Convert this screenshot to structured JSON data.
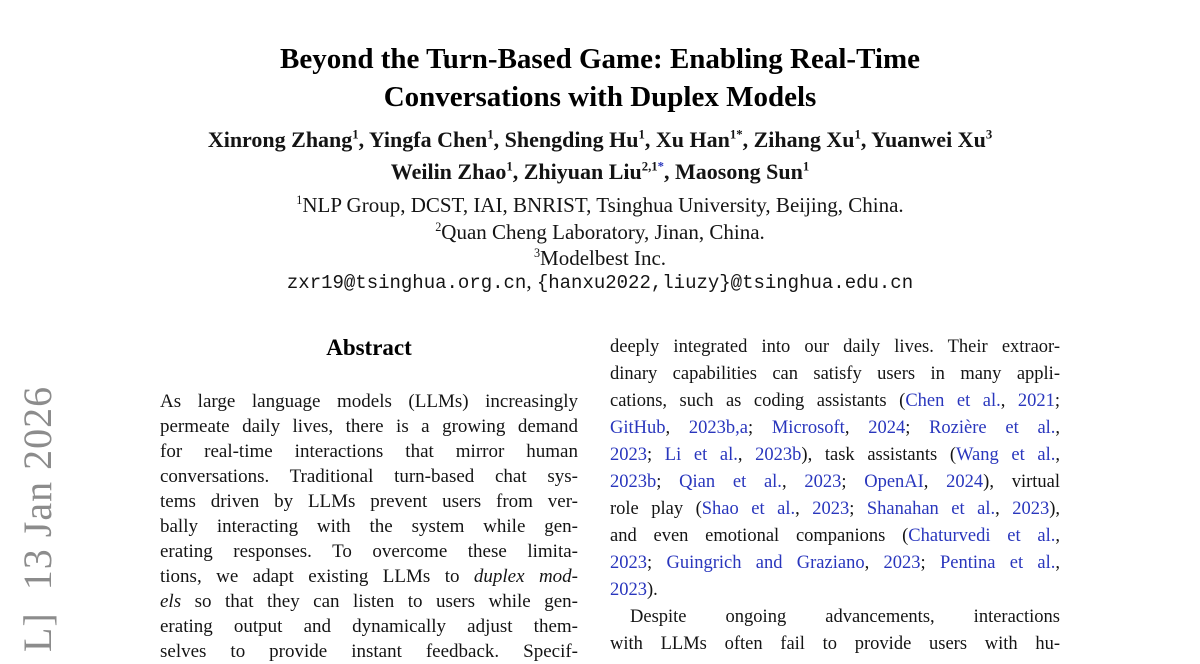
{
  "colors": {
    "citation_blue": "#2936bd",
    "stamp_gray": "#8c8c8c"
  },
  "stamp": {
    "text": "L]  13 Jan 2026"
  },
  "title": {
    "line1": "Beyond the Turn-Based Game: Enabling Real-Time",
    "line2": "Conversations with Duplex Models"
  },
  "authors": {
    "line1": [
      {
        "t": "Xinrong Zhang"
      },
      {
        "t": "1",
        "s": "sup"
      },
      {
        "t": ", Yingfa Chen"
      },
      {
        "t": "1",
        "s": "sup"
      },
      {
        "t": ", Shengding Hu"
      },
      {
        "t": "1",
        "s": "sup"
      },
      {
        "t": ", Xu Han"
      },
      {
        "t": "1*",
        "s": "sup"
      },
      {
        "t": ", Zihang Xu"
      },
      {
        "t": "1",
        "s": "sup"
      },
      {
        "t": ", Yuanwei Xu"
      },
      {
        "t": "3",
        "s": "sup"
      }
    ],
    "line2": [
      {
        "t": "Weilin Zhao"
      },
      {
        "t": "1",
        "s": "sup"
      },
      {
        "t": ", Zhiyuan Liu"
      },
      {
        "t": "2,1",
        "s": "sup"
      },
      {
        "t": "*",
        "s": "supb"
      },
      {
        "t": ", Maosong Sun"
      },
      {
        "t": "1",
        "s": "sup"
      }
    ]
  },
  "affiliations": {
    "a1": [
      {
        "t": "1",
        "s": "sup"
      },
      {
        "t": "NLP Group, DCST, IAI, BNRIST, Tsinghua University, Beijing, China."
      }
    ],
    "a2": [
      {
        "t": "2",
        "s": "sup"
      },
      {
        "t": "Quan Cheng Laboratory, Jinan, China."
      }
    ],
    "a3": [
      {
        "t": "3",
        "s": "sup"
      },
      {
        "t": "Modelbest Inc."
      }
    ]
  },
  "email_line": [
    {
      "t": "zxr19@tsinghua.org.cn",
      "s": "mono"
    },
    {
      "t": ", "
    },
    {
      "t": "{hanxu2022,liuzy}@tsinghua.edu.cn",
      "s": "mono"
    }
  ],
  "abstract": {
    "heading": "Abstract",
    "lines": [
      {
        "seg": [
          {
            "t": "As large language models (LLMs) increasingly"
          }
        ]
      },
      {
        "seg": [
          {
            "t": "permeate daily lives, there is a growing demand"
          }
        ]
      },
      {
        "seg": [
          {
            "t": "for real-time interactions that mirror human"
          }
        ]
      },
      {
        "seg": [
          {
            "t": "conversations. Traditional turn-based chat sys-"
          }
        ]
      },
      {
        "seg": [
          {
            "t": "tems driven by LLMs prevent users from ver-"
          }
        ]
      },
      {
        "seg": [
          {
            "t": "bally interacting with the system while gen-"
          }
        ]
      },
      {
        "seg": [
          {
            "t": "erating responses.  To overcome these limita-"
          }
        ]
      },
      {
        "seg": [
          {
            "t": "tions, we adapt existing LLMs to "
          },
          {
            "t": "duplex mod-",
            "s": "i"
          }
        ]
      },
      {
        "seg": [
          {
            "t": "els",
            "s": "i"
          },
          {
            "t": " so that they can listen to users while gen-"
          }
        ]
      },
      {
        "seg": [
          {
            "t": "erating output and dynamically adjust them-"
          }
        ]
      },
      {
        "seg": [
          {
            "t": "selves to provide instant feedback.  Specif-"
          }
        ]
      }
    ]
  },
  "intro_column": {
    "lines": [
      {
        "seg": [
          {
            "t": "deeply integrated into our daily lives. Their extraor-"
          }
        ]
      },
      {
        "seg": [
          {
            "t": "dinary capabilities can satisfy users in many appli-"
          }
        ]
      },
      {
        "seg": [
          {
            "t": "cations, such as coding assistants ("
          },
          {
            "t": "Chen et al.",
            "s": "c"
          },
          {
            "t": ", "
          },
          {
            "t": "2021",
            "s": "c"
          },
          {
            "t": ";"
          }
        ]
      },
      {
        "seg": [
          {
            "t": "GitHub",
            "s": "c"
          },
          {
            "t": ", "
          },
          {
            "t": "2023b,a",
            "s": "c"
          },
          {
            "t": "; "
          },
          {
            "t": "Microsoft",
            "s": "c"
          },
          {
            "t": ", "
          },
          {
            "t": "2024",
            "s": "c"
          },
          {
            "t": "; "
          },
          {
            "t": "Rozière et al.",
            "s": "c"
          },
          {
            "t": ","
          }
        ]
      },
      {
        "seg": [
          {
            "t": "2023",
            "s": "c"
          },
          {
            "t": "; "
          },
          {
            "t": "Li et al.",
            "s": "c"
          },
          {
            "t": ", "
          },
          {
            "t": "2023b",
            "s": "c"
          },
          {
            "t": "), task assistants ("
          },
          {
            "t": "Wang et al.",
            "s": "c"
          },
          {
            "t": ","
          }
        ]
      },
      {
        "seg": [
          {
            "t": "2023b",
            "s": "c"
          },
          {
            "t": "; "
          },
          {
            "t": "Qian et al.",
            "s": "c"
          },
          {
            "t": ", "
          },
          {
            "t": "2023",
            "s": "c"
          },
          {
            "t": "; "
          },
          {
            "t": "OpenAI",
            "s": "c"
          },
          {
            "t": ", "
          },
          {
            "t": "2024",
            "s": "c"
          },
          {
            "t": "), virtual"
          }
        ]
      },
      {
        "seg": [
          {
            "t": "role play ("
          },
          {
            "t": "Shao et al.",
            "s": "c"
          },
          {
            "t": ", "
          },
          {
            "t": "2023",
            "s": "c"
          },
          {
            "t": "; "
          },
          {
            "t": "Shanahan et al.",
            "s": "c"
          },
          {
            "t": ", "
          },
          {
            "t": "2023",
            "s": "c"
          },
          {
            "t": "),"
          }
        ]
      },
      {
        "seg": [
          {
            "t": "and even emotional companions ("
          },
          {
            "t": "Chaturvedi et al.",
            "s": "c"
          },
          {
            "t": ","
          }
        ]
      },
      {
        "seg": [
          {
            "t": "2023",
            "s": "c"
          },
          {
            "t": "; "
          },
          {
            "t": "Guingrich and Graziano",
            "s": "c"
          },
          {
            "t": ", "
          },
          {
            "t": "2023",
            "s": "c"
          },
          {
            "t": "; "
          },
          {
            "t": "Pentina et al.",
            "s": "c"
          },
          {
            "t": ","
          }
        ]
      },
      {
        "seg": [
          {
            "t": "2023",
            "s": "c"
          },
          {
            "t": ")."
          }
        ],
        "just": false
      },
      {
        "seg": [
          {
            "t": "Despite ongoing advancements, interactions"
          }
        ],
        "indent": true
      },
      {
        "seg": [
          {
            "t": "with LLMs often fail to provide users with hu-"
          }
        ]
      }
    ]
  }
}
